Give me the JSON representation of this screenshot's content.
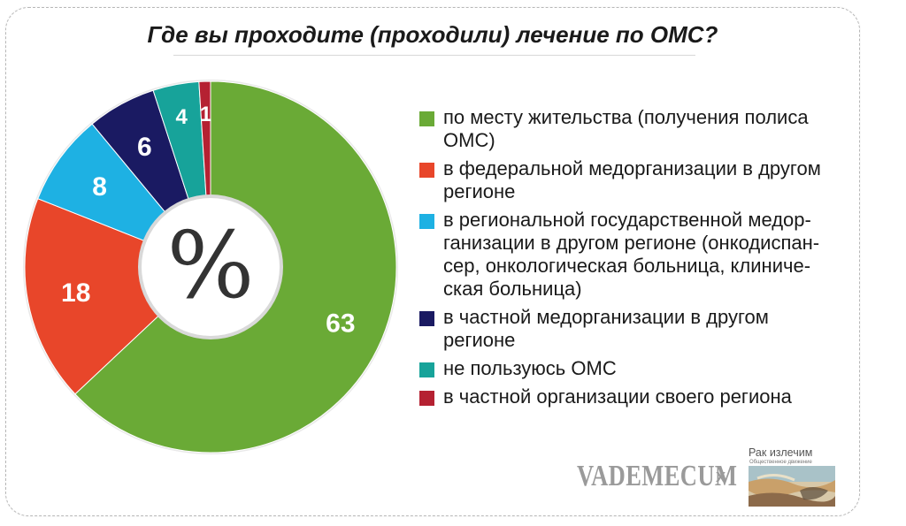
{
  "chart_data": {
    "type": "pie",
    "title": "Где вы проходите (проходили) лечение по ОМС?",
    "center_label": "%",
    "slices": [
      {
        "label": "по месту жительства (получения полиса ОМС)",
        "value": 63,
        "color": "#6aaa36"
      },
      {
        "label": "в федеральной медорганизации в другом регионе",
        "value": 18,
        "color": "#e8462a"
      },
      {
        "label": "в региональной государственной медор-ганизации в другом регионе (онкодиспан-сер, онкологическая больница, клиниче-ская больница)",
        "value": 8,
        "color": "#1eb1e3"
      },
      {
        "label": "в частной медорганизации в другом регионе",
        "value": 6,
        "color": "#1a1a62"
      },
      {
        "label": "не пользуюсь ОМС",
        "value": 4,
        "color": "#17a39a"
      },
      {
        "label": "в частной организации своего региона",
        "value": 1,
        "color": "#b52132"
      }
    ]
  },
  "legend": [
    {
      "text": "по месту жительства (получения полиса\nОМС)",
      "color": "#6aaa36"
    },
    {
      "text": "в федеральной медорганизации в другом\nрегионе",
      "color": "#e8462a"
    },
    {
      "text": "в региональной государственной медор-\nганизации в другом регионе (онкодиспан-\nсер, онкологическая больница, клиниче-\nская больница)",
      "color": "#1eb1e3"
    },
    {
      "text": "в частной медорганизации в другом\nрегионе",
      "color": "#1a1a62"
    },
    {
      "text": "не пользуюсь ОМС",
      "color": "#17a39a"
    },
    {
      "text": "в частной организации своего региона",
      "color": "#b52132"
    }
  ],
  "logos": {
    "vademecum": "VADEMECUM",
    "separator": "x",
    "rak_title": "Рак излечим",
    "rak_subtitle": "Общественное движение"
  }
}
